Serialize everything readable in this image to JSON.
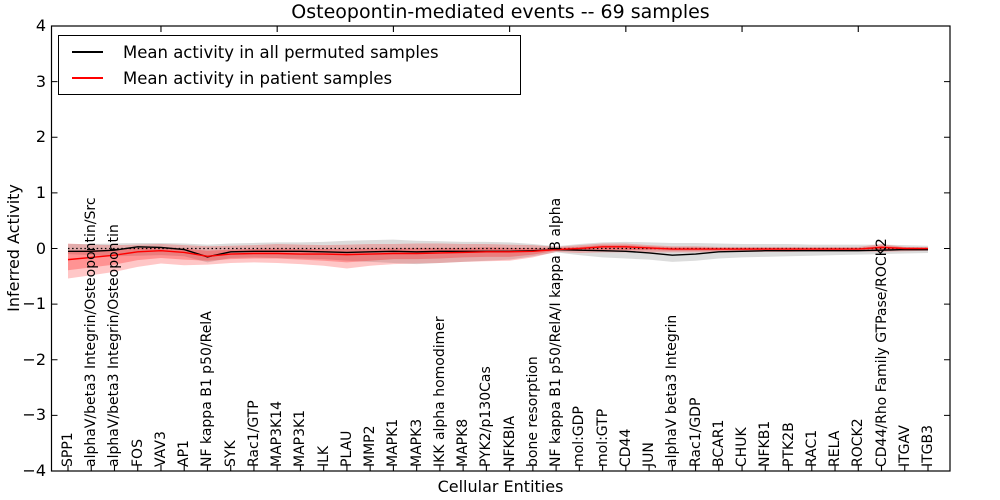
{
  "chart_data": {
    "type": "line",
    "title": "Osteopontin-mediated events -- 69 samples",
    "xlabel": "Cellular Entities",
    "ylabel": "Inferred Activity",
    "ylim": [
      -4,
      4
    ],
    "grid": false,
    "legend_position": "upper left",
    "axes": {
      "ytick_values": [
        4,
        3,
        2,
        1,
        0,
        -1,
        -2,
        -3,
        -4
      ],
      "ytick_labels": [
        "4",
        "3",
        "2",
        "1",
        "0",
        "−1",
        "−2",
        "−3",
        "−4"
      ],
      "top_tick_indices": [
        4,
        9,
        14,
        19,
        24,
        29,
        34
      ]
    },
    "categories": [
      "SPP1",
      "alphaV/beta3 Integrin/Osteopontin/Src",
      "alphaV/beta3 Integrin/Osteopontin",
      "FOS",
      "VAV3",
      "AP1",
      "NF kappa B1 p50/RelA",
      "SYK",
      "Rac1/GTP",
      "MAP3K14",
      "MAP3K1",
      "ILK",
      "PLAU",
      "MMP2",
      "MAPK1",
      "MAPK3",
      "IKK alpha homodimer",
      "MAPK8",
      "PYK2/p130Cas",
      "NFKBIA",
      "bone resorption",
      "NF kappa B1 p50/RelA/I kappa B alpha",
      "mol:GDP",
      "mol:GTP",
      "CD44",
      "JUN",
      "alphaV beta3 Integrin",
      "Rac1/GDP",
      "BCAR1",
      "CHUK",
      "NFKB1",
      "PTK2B",
      "RAC1",
      "RELA",
      "ROCK2",
      "CD44/Rho Family GTPase/ROCK2",
      "ITGAV",
      "ITGB3"
    ],
    "series": [
      {
        "name": "Mean activity in all permuted samples",
        "color": "#000000",
        "values": [
          -0.05,
          -0.05,
          -0.03,
          0.03,
          0.02,
          -0.02,
          -0.15,
          -0.06,
          -0.05,
          -0.05,
          -0.05,
          -0.06,
          -0.07,
          -0.06,
          -0.05,
          -0.06,
          -0.05,
          -0.05,
          -0.05,
          -0.05,
          -0.04,
          -0.02,
          -0.03,
          -0.04,
          -0.05,
          -0.08,
          -0.12,
          -0.1,
          -0.06,
          -0.05,
          -0.04,
          -0.04,
          -0.04,
          -0.04,
          -0.04,
          -0.03,
          -0.02,
          -0.02
        ]
      },
      {
        "name": "Mean activity in patient samples",
        "color": "#ff0000",
        "values": [
          -0.2,
          -0.16,
          -0.12,
          -0.06,
          -0.04,
          -0.07,
          -0.14,
          -0.1,
          -0.09,
          -0.09,
          -0.1,
          -0.1,
          -0.11,
          -0.1,
          -0.09,
          -0.09,
          -0.08,
          -0.07,
          -0.06,
          -0.06,
          -0.05,
          -0.02,
          0.0,
          0.03,
          0.03,
          0.01,
          -0.01,
          -0.01,
          -0.01,
          -0.01,
          -0.01,
          -0.01,
          -0.01,
          -0.01,
          -0.01,
          0.02,
          0.0,
          0.0
        ]
      }
    ],
    "bands": [
      {
        "name": "permuted-samples-range-band",
        "color": "rgba(128,128,128,0.28)",
        "upper": [
          0.08,
          0.08,
          0.09,
          0.1,
          0.1,
          0.09,
          0.07,
          0.09,
          0.1,
          0.11,
          0.11,
          0.12,
          0.14,
          0.15,
          0.16,
          0.14,
          0.13,
          0.12,
          0.12,
          0.11,
          0.08,
          0.04,
          0.08,
          0.11,
          0.12,
          0.11,
          0.1,
          0.1,
          0.09,
          0.08,
          0.08,
          0.08,
          0.07,
          0.07,
          0.07,
          0.07,
          0.06,
          0.05
        ],
        "lower": [
          -0.1,
          -0.12,
          -0.14,
          -0.13,
          -0.12,
          -0.14,
          -0.25,
          -0.17,
          -0.16,
          -0.17,
          -0.18,
          -0.19,
          -0.22,
          -0.24,
          -0.26,
          -0.28,
          -0.26,
          -0.24,
          -0.22,
          -0.2,
          -0.14,
          -0.07,
          -0.12,
          -0.16,
          -0.18,
          -0.2,
          -0.24,
          -0.22,
          -0.18,
          -0.16,
          -0.15,
          -0.14,
          -0.13,
          -0.12,
          -0.11,
          -0.1,
          -0.09,
          -0.08
        ]
      },
      {
        "name": "patient-samples-outer-band",
        "color": "rgba(255,0,0,0.22)",
        "upper": [
          0.09,
          0.07,
          0.06,
          0.07,
          0.08,
          0.06,
          0.04,
          0.05,
          0.06,
          0.08,
          0.07,
          0.06,
          0.07,
          0.08,
          0.08,
          0.09,
          0.09,
          0.08,
          0.08,
          0.07,
          0.06,
          0.03,
          0.06,
          0.09,
          0.09,
          0.06,
          0.04,
          0.04,
          0.03,
          0.03,
          0.03,
          0.03,
          0.03,
          0.03,
          0.03,
          0.08,
          0.03,
          0.02
        ],
        "lower": [
          -0.54,
          -0.48,
          -0.42,
          -0.33,
          -0.27,
          -0.3,
          -0.29,
          -0.26,
          -0.25,
          -0.26,
          -0.28,
          -0.31,
          -0.36,
          -0.31,
          -0.28,
          -0.27,
          -0.26,
          -0.24,
          -0.23,
          -0.22,
          -0.16,
          -0.06,
          -0.08,
          -0.07,
          -0.07,
          -0.07,
          -0.07,
          -0.07,
          -0.06,
          -0.06,
          -0.06,
          -0.06,
          -0.05,
          -0.05,
          -0.05,
          -0.06,
          -0.05,
          -0.04
        ]
      },
      {
        "name": "patient-samples-inner-band",
        "color": "rgba(255,0,0,0.26)",
        "upper": [
          -0.04,
          -0.03,
          -0.02,
          0.01,
          0.03,
          0.0,
          -0.04,
          -0.02,
          -0.01,
          0.0,
          -0.01,
          -0.01,
          -0.01,
          0.0,
          0.0,
          0.01,
          0.01,
          0.01,
          0.02,
          0.01,
          0.01,
          0.01,
          0.03,
          0.06,
          0.06,
          0.04,
          0.02,
          0.02,
          0.01,
          0.01,
          0.01,
          0.01,
          0.01,
          0.01,
          0.01,
          0.05,
          0.02,
          0.01
        ],
        "lower": [
          -0.39,
          -0.34,
          -0.29,
          -0.21,
          -0.17,
          -0.2,
          -0.22,
          -0.19,
          -0.18,
          -0.18,
          -0.2,
          -0.22,
          -0.25,
          -0.22,
          -0.19,
          -0.19,
          -0.18,
          -0.16,
          -0.15,
          -0.15,
          -0.11,
          -0.04,
          -0.04,
          -0.03,
          -0.03,
          -0.03,
          -0.04,
          -0.04,
          -0.04,
          -0.04,
          -0.04,
          -0.04,
          -0.03,
          -0.03,
          -0.03,
          -0.02,
          -0.03,
          -0.02
        ]
      }
    ],
    "zero_line": {
      "value": 0,
      "style": "dotted",
      "color": "#000000"
    }
  }
}
